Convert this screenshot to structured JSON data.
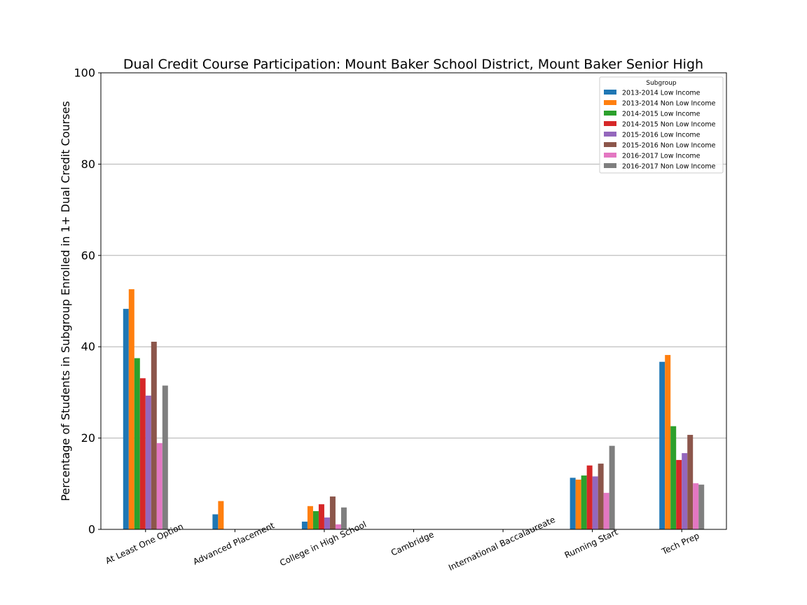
{
  "chart_data": {
    "type": "bar",
    "title": "Dual Credit Course Participation: Mount Baker School District, Mount Baker Senior High",
    "xlabel": "",
    "ylabel": "Percentage of Students in Subgroup Enrolled in 1+ Dual Credit Courses",
    "ylim": [
      0,
      100
    ],
    "yticks": [
      0,
      20,
      40,
      60,
      80,
      100
    ],
    "grid": "y",
    "legend": {
      "title": "Subgroup",
      "placement": "top-right"
    },
    "categories": [
      "At Least One Option",
      "Advanced Placement",
      "College in High School",
      "Cambridge",
      "International Baccalaureate",
      "Running Start",
      "Tech Prep"
    ],
    "series": [
      {
        "name": "2013-2014 Low Income",
        "color": "#1f77b4",
        "values": [
          48.3,
          3.3,
          1.7,
          0,
          0,
          11.3,
          36.7
        ]
      },
      {
        "name": "2013-2014 Non Low Income",
        "color": "#ff7f0e",
        "values": [
          52.6,
          6.2,
          5.1,
          0,
          0,
          10.9,
          38.2
        ]
      },
      {
        "name": "2014-2015 Low Income",
        "color": "#2ca02c",
        "values": [
          37.5,
          0,
          4.0,
          0,
          0,
          11.8,
          22.6
        ]
      },
      {
        "name": "2014-2015 Non Low Income",
        "color": "#d62728",
        "values": [
          33.1,
          0,
          5.5,
          0,
          0,
          14.0,
          15.2
        ]
      },
      {
        "name": "2015-2016 Low Income",
        "color": "#9467bd",
        "values": [
          29.3,
          0,
          2.6,
          0,
          0,
          11.6,
          16.7
        ]
      },
      {
        "name": "2015-2016 Non Low Income",
        "color": "#8c564b",
        "values": [
          41.1,
          0,
          7.2,
          0,
          0,
          14.4,
          20.7
        ]
      },
      {
        "name": "2016-2017 Low Income",
        "color": "#e377c2",
        "values": [
          18.9,
          0,
          1.1,
          0,
          0,
          8.0,
          10.1
        ]
      },
      {
        "name": "2016-2017 Non Low Income",
        "color": "#7f7f7f",
        "values": [
          31.5,
          0,
          4.8,
          0,
          0,
          18.3,
          9.8
        ]
      }
    ]
  }
}
